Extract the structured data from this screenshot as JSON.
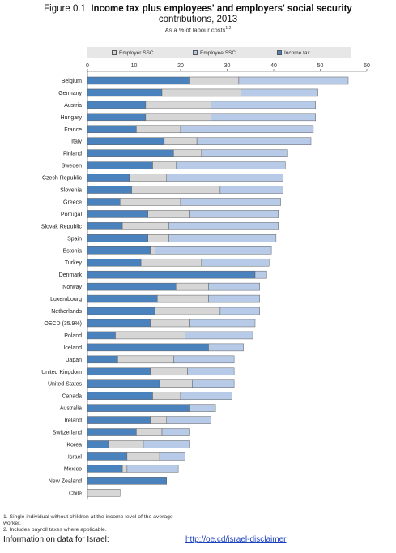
{
  "title": {
    "figure": "Figure 0.1.",
    "text_line1": "Income tax plus employees' and employers' social security",
    "text_line2": "contributions, 2013",
    "subtitle": "As a % of labour costs",
    "subtitle_sup": "1,2"
  },
  "legend": {
    "employer": "Employer SSC",
    "employee": "Employee SSC",
    "income": "Income tax"
  },
  "colors": {
    "employer": "#d6d6d6",
    "employee": "#b7cbe8",
    "income": "#4a82bd",
    "bar_border": "#606060"
  },
  "chart_data": {
    "type": "bar",
    "orientation": "horizontal",
    "stacked": true,
    "xlim": [
      0,
      60
    ],
    "xticks": [
      0,
      10,
      20,
      30,
      40,
      50,
      60
    ],
    "legend_position": "top",
    "series": [
      {
        "name": "Income tax",
        "key": "income"
      },
      {
        "name": "Employer SSC",
        "key": "employer"
      },
      {
        "name": "Employee SSC",
        "key": "employee"
      }
    ],
    "categories": [
      "Belgium",
      "Germany",
      "Austria",
      "Hungary",
      "France",
      "Italy",
      "Finland",
      "Sweden",
      "Czech Republic",
      "Slovenia",
      "Greece",
      "Portugal",
      "Slovak Republic",
      "Spain",
      "Estonia",
      "Turkey",
      "Denmark",
      "Norway",
      "Luxembourg",
      "Netherlands",
      "OECD (35.9%)",
      "Poland",
      "Iceland",
      "Japan",
      "United Kingdom",
      "United States",
      "Canada",
      "Australia",
      "Ireland",
      "Switzerland",
      "Korea",
      "Israel",
      "Mexico",
      "New Zealand",
      "Chile"
    ],
    "income": [
      22.0,
      16.0,
      12.5,
      12.5,
      10.5,
      16.5,
      18.5,
      14.0,
      9.0,
      9.5,
      7.0,
      13.0,
      7.5,
      13.0,
      13.5,
      11.5,
      36.0,
      19.0,
      15.0,
      14.5,
      13.5,
      6.0,
      26.0,
      6.5,
      13.5,
      15.5,
      14.0,
      22.0,
      13.5,
      10.5,
      4.5,
      8.5,
      7.5,
      17.0,
      0.0
    ],
    "employer": [
      10.5,
      17.0,
      14.0,
      14.0,
      9.5,
      7.0,
      6.0,
      5.0,
      8.0,
      19.0,
      13.0,
      9.0,
      10.0,
      4.5,
      1.0,
      13.0,
      0.0,
      7.0,
      11.0,
      14.0,
      8.5,
      15.0,
      0.0,
      12.0,
      8.0,
      7.0,
      6.0,
      0.0,
      3.5,
      5.5,
      7.5,
      7.0,
      1.0,
      0.0,
      7.0
    ],
    "employee": [
      23.5,
      16.5,
      22.5,
      22.5,
      28.5,
      24.5,
      18.5,
      23.5,
      25.0,
      13.5,
      21.5,
      19.0,
      23.5,
      23.0,
      25.0,
      14.5,
      2.5,
      11.0,
      11.0,
      8.5,
      14.0,
      14.5,
      7.5,
      13.0,
      10.0,
      9.0,
      11.0,
      5.5,
      9.5,
      6.0,
      10.0,
      5.5,
      11.0,
      0.0,
      0.0
    ]
  },
  "notes": {
    "note1": "1. Single individual without children at the income level of the average",
    "note1b": "worker.",
    "note2": "2. Includes payroll taxes where applicable."
  },
  "info": {
    "label": "Information on data for Israel:",
    "link": "http://oe.cd/israel-disclaimer"
  }
}
